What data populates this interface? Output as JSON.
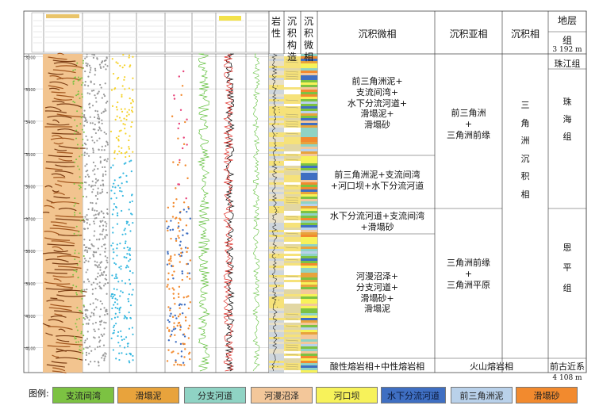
{
  "headers": {
    "lithology": "岩性",
    "sed_structure": "沉积构造",
    "sed_microfacies_log": "沉积微相",
    "microfacies": "沉积微相",
    "subfacies": "沉积亚相",
    "facies": "沉积相",
    "strata": "地层",
    "group": "组"
  },
  "depth": {
    "top": "3 192 m",
    "bottom": "4 108 m",
    "ticks": [
      "3 200",
      "3 300",
      "3 400",
      "3 500",
      "3 600",
      "3 700",
      "3 800",
      "3 900",
      "4 000",
      "4 100"
    ],
    "min": 3192,
    "max": 4108
  },
  "microfacies": [
    "前三角洲泥+\n支流间湾+\n水下分流河道+\n滑塌泥+\n滑塌砂",
    "前三角洲泥+支流间湾\n+河口坝+水下分流河道",
    "水下分流河道+支流间湾\n+滑塌砂",
    "河漫沼泽+\n分支河道+\n滑塌砂+\n滑塌泥",
    "酸性熔岩相+中性熔岩相"
  ],
  "subfacies": [
    "前三角洲\n+\n三角洲前缘",
    "三角洲前缘\n+\n三角洲平原",
    "火山熔岩相"
  ],
  "facies": "三\n角\n洲\n沉\n积\n相",
  "strata": {
    "zhujiang": "珠江组",
    "zhuhai": "珠\n海\n组",
    "enping": "恩\n平\n组",
    "pre_paleogene": "前古近系"
  },
  "legend": {
    "title": "图例:",
    "items": [
      {
        "label": "支流间湾",
        "color": "#7cc242"
      },
      {
        "label": "滑塌泥",
        "color": "#e8a33c"
      },
      {
        "label": "分支河道",
        "color": "#8fd3c4"
      },
      {
        "label": "河漫沼泽",
        "color": "#f3c79a"
      },
      {
        "label": "河口坝",
        "color": "#f7f25a"
      },
      {
        "label": "水下分流河道",
        "color": "#3f6fc2"
      },
      {
        "label": "前三角洲泥",
        "color": "#b9d1ea"
      },
      {
        "label": "滑塌砂",
        "color": "#f28a2e"
      }
    ]
  }
}
